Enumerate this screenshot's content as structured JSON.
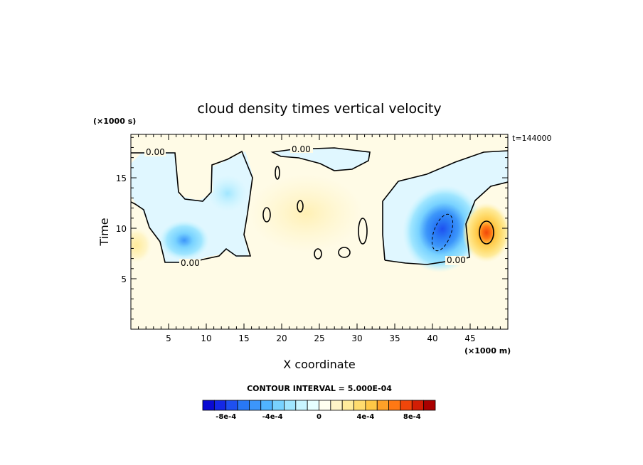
{
  "chart_data": {
    "type": "heatmap",
    "title": "cloud density times vertical velocity",
    "xlabel": "X coordinate",
    "ylabel": "Time",
    "x_unit": "(×1000 m)",
    "y_unit": "(×1000 s)",
    "time_stamp": "t=144000",
    "xlim": [
      0,
      50
    ],
    "ylim": [
      0,
      19.3
    ],
    "x_ticks": [
      5,
      10,
      15,
      20,
      25,
      30,
      35,
      40,
      45
    ],
    "y_ticks": [
      5,
      10,
      15
    ],
    "contour_label": "0.00",
    "contour_interval_text": "CONTOUR INTERVAL = 5.000E-04",
    "colorbar": {
      "min": -0.001,
      "max": 0.001,
      "colors": [
        "#0a0ad2",
        "#1428e6",
        "#1e50f0",
        "#2878f5",
        "#3c96fa",
        "#50b4ff",
        "#78d2ff",
        "#a0e6ff",
        "#c8f5ff",
        "#e6ffff",
        "#fffff0",
        "#fff5c8",
        "#ffeb9b",
        "#ffdc6e",
        "#ffc846",
        "#ffa028",
        "#ff7814",
        "#f0460a",
        "#d21e05",
        "#aa0000"
      ],
      "tick_labels": [
        "-8e-4",
        "-4e-4",
        "0",
        "4e-4",
        "8e-4"
      ],
      "tick_values": [
        -0.0008,
        -0.0004,
        0,
        0.0004,
        0.0008
      ]
    },
    "features": [
      {
        "name": "negative-region-left",
        "x": 7.0,
        "y": 9.0,
        "value": -0.00055
      },
      {
        "name": "negative-region-upper-left",
        "x": 12.5,
        "y": 12.5,
        "value": -0.0002
      },
      {
        "name": "positive-region-left-edge",
        "x": 1.0,
        "y": 8.8,
        "value": 0.0003
      },
      {
        "name": "positive-region-center",
        "x": 25.0,
        "y": 11.0,
        "value": 0.0001
      },
      {
        "name": "negative-region-right",
        "x": 41.0,
        "y": 10.0,
        "value": -0.0009
      },
      {
        "name": "positive-region-right",
        "x": 47.0,
        "y": 10.0,
        "value": 0.0008
      }
    ]
  }
}
